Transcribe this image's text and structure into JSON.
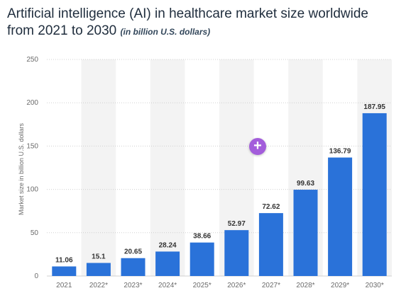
{
  "header": {
    "title": "Artificial intelligence (AI) in healthcare market size worldwide from 2021 to 2030",
    "subtitle": "(in billion U.S. dollars)"
  },
  "plus_button": {
    "icon": "plus-icon",
    "glyph": "+"
  },
  "colors": {
    "bar": "#2a72d9",
    "band": "#f3f3f3",
    "grid": "#d0d0d0"
  },
  "chart_data": {
    "type": "bar",
    "title": "Artificial intelligence (AI) in healthcare market size worldwide from 2021 to 2030",
    "subtitle": "(in billion U.S. dollars)",
    "xlabel": "",
    "ylabel": "Market size in billion U.S. dollars",
    "ylim": [
      0,
      250
    ],
    "yticks": [
      0,
      50,
      100,
      150,
      200,
      250
    ],
    "grid": true,
    "categories": [
      "2021",
      "2022*",
      "2023*",
      "2024*",
      "2025*",
      "2026*",
      "2027*",
      "2028*",
      "2029*",
      "2030*"
    ],
    "values": [
      11.06,
      15.1,
      20.65,
      28.24,
      38.66,
      52.97,
      72.62,
      99.63,
      136.79,
      187.95
    ],
    "value_labels": [
      "11.06",
      "15.1",
      "20.65",
      "28.24",
      "38.66",
      "52.97",
      "72.62",
      "99.63",
      "136.79",
      "187.95"
    ]
  }
}
